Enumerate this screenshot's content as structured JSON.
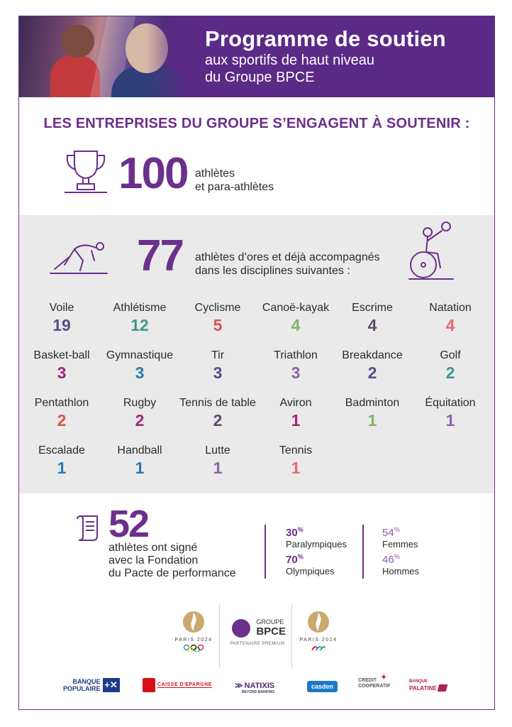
{
  "header": {
    "title": "Programme de soutien",
    "subtitle_line1": "aux sportifs de haut niveau",
    "subtitle_line2": "du Groupe BPCE"
  },
  "headline": "LES ENTREPRISES DU GROUPE S’ENGAGENT À SOUTENIR :",
  "commitment": {
    "number": "100",
    "line1": "athlètes",
    "line2": "et para-athlètes"
  },
  "accompanied": {
    "number": "77",
    "line1": "athlètes d’ores et déjà accompagnés",
    "line2": "dans les disciplines suivantes :"
  },
  "sports": [
    {
      "name": "Voile",
      "count": "19",
      "color": "#5a4a8c"
    },
    {
      "name": "Athlétisme",
      "count": "12",
      "color": "#3a9a8c"
    },
    {
      "name": "Cyclisme",
      "count": "5",
      "color": "#d9534f"
    },
    {
      "name": "Canoë-kayak",
      "count": "4",
      "color": "#7fb36a"
    },
    {
      "name": "Escrime",
      "count": "4",
      "color": "#5e4a6e"
    },
    {
      "name": "Natation",
      "count": "4",
      "color": "#e06a7a"
    },
    {
      "name": "Basket-ball",
      "count": "3",
      "color": "#a0267a"
    },
    {
      "name": "Gymnastique",
      "count": "3",
      "color": "#2a7ab0"
    },
    {
      "name": "Tir",
      "count": "3",
      "color": "#5a4a8c"
    },
    {
      "name": "Triathlon",
      "count": "3",
      "color": "#8a64a8"
    },
    {
      "name": "Breakdance",
      "count": "2",
      "color": "#5a4a8c"
    },
    {
      "name": "Golf",
      "count": "2",
      "color": "#3a9a8c"
    },
    {
      "name": "Pentathlon",
      "count": "2",
      "color": "#d9534f"
    },
    {
      "name": "Rugby",
      "count": "2",
      "color": "#a0267a"
    },
    {
      "name": "Tennis de table",
      "count": "2",
      "color": "#5e4a6e"
    },
    {
      "name": "Aviron",
      "count": "1",
      "color": "#a0267a"
    },
    {
      "name": "Badminton",
      "count": "1",
      "color": "#7fb36a"
    },
    {
      "name": "Équitation",
      "count": "1",
      "color": "#8a64a8"
    },
    {
      "name": "Escalade",
      "count": "1",
      "color": "#2a7ab0"
    },
    {
      "name": "Handball",
      "count": "1",
      "color": "#2a7ab0"
    },
    {
      "name": "Lutte",
      "count": "1",
      "color": "#8a64a8"
    },
    {
      "name": "Tennis",
      "count": "1",
      "color": "#e06a7a"
    }
  ],
  "signed": {
    "number": "52",
    "line1": "athlètes ont signé",
    "line2": "avec la Fondation",
    "line3": "du Pacte de performance"
  },
  "stats": {
    "para_pct": "30",
    "para_label": "Paralympiques",
    "olym_pct": "70",
    "olym_label": "Olympiques",
    "women_pct": "54",
    "women_label": "Femmes",
    "men_pct": "46",
    "men_label": "Hommes",
    "pct_sign": "%"
  },
  "partners": {
    "paris1": "PARIS 2024",
    "bpce_small": "GROUPE",
    "bpce_big": "BPCE",
    "premium": "PARTENAIRE PREMIUM",
    "paris2": "PARIS 2024"
  },
  "brands": {
    "bp_line1": "BANQUE",
    "bp_line2": "POPULAIRE",
    "ce": "CAISSE D'EPARGNE",
    "natixis": "NATIXIS",
    "natixis_sub": "BEYOND BANKING",
    "casden": "casden",
    "cc_line1": "CREDIT",
    "cc_line2": "COOPERATIF",
    "bpal_line1": "BANQUE",
    "bpal_line2": "PALATINE"
  },
  "colors": {
    "brand_purple": "#6b2f8c",
    "header_purple": "#5b2a86",
    "panel_grey": "#ebeaea"
  }
}
